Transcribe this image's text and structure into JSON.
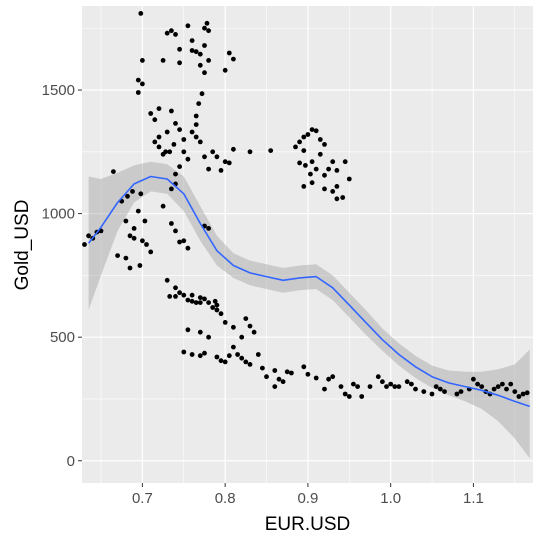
{
  "chart_data": {
    "type": "scatter",
    "xlabel": "EUR.USD",
    "ylabel": "Gold_USD",
    "xlim": [
      0.627,
      1.172
    ],
    "ylim": [
      -90,
      1840
    ],
    "x_ticks": [
      0.7,
      0.8,
      0.9,
      1.0,
      1.1
    ],
    "x_tick_labels": [
      "0.7",
      "0.8",
      "0.9",
      "1.0",
      "1.1"
    ],
    "y_ticks": [
      0,
      500,
      1000,
      1500
    ],
    "y_tick_labels": [
      "0",
      "500",
      "1000",
      "1500"
    ],
    "grid": true,
    "legend": "none",
    "colors": {
      "panel": "#ebebeb",
      "grid": "#ffffff",
      "points": "#000000",
      "smooth_line": "#3366ff",
      "ribbon": "#999999"
    },
    "points": [
      [
        0.698,
        1810
      ],
      [
        0.7,
        1620
      ],
      [
        0.695,
        1540
      ],
      [
        0.7,
        1525
      ],
      [
        0.695,
        1490
      ],
      [
        0.72,
        1425
      ],
      [
        0.725,
        1620
      ],
      [
        0.73,
        1730
      ],
      [
        0.735,
        1740
      ],
      [
        0.74,
        1725
      ],
      [
        0.745,
        1665
      ],
      [
        0.745,
        1610
      ],
      [
        0.755,
        1760
      ],
      [
        0.76,
        1700
      ],
      [
        0.76,
        1660
      ],
      [
        0.765,
        1655
      ],
      [
        0.77,
        1645
      ],
      [
        0.77,
        1600
      ],
      [
        0.775,
        1750
      ],
      [
        0.778,
        1770
      ],
      [
        0.78,
        1740
      ],
      [
        0.775,
        1680
      ],
      [
        0.78,
        1620
      ],
      [
        0.775,
        1570
      ],
      [
        0.772,
        1485
      ],
      [
        0.768,
        1445
      ],
      [
        0.765,
        1395
      ],
      [
        0.765,
        1360
      ],
      [
        0.8,
        1580
      ],
      [
        0.805,
        1650
      ],
      [
        0.81,
        1625
      ],
      [
        0.71,
        1405
      ],
      [
        0.715,
        1380
      ],
      [
        0.715,
        1290
      ],
      [
        0.72,
        1310
      ],
      [
        0.73,
        1330
      ],
      [
        0.725,
        1240
      ],
      [
        0.735,
        1415
      ],
      [
        0.74,
        1365
      ],
      [
        0.745,
        1340
      ],
      [
        0.75,
        1300
      ],
      [
        0.75,
        1250
      ],
      [
        0.755,
        1220
      ],
      [
        0.76,
        1330
      ],
      [
        0.765,
        1310
      ],
      [
        0.77,
        1290
      ],
      [
        0.775,
        1230
      ],
      [
        0.78,
        1180
      ],
      [
        0.785,
        1250
      ],
      [
        0.79,
        1230
      ],
      [
        0.795,
        1175
      ],
      [
        0.8,
        1210
      ],
      [
        0.805,
        1205
      ],
      [
        0.81,
        1260
      ],
      [
        0.72,
        1270
      ],
      [
        0.728,
        1250
      ],
      [
        0.733,
        1250
      ],
      [
        0.738,
        1280
      ],
      [
        0.74,
        1160
      ],
      [
        0.745,
        1190
      ],
      [
        0.735,
        1100
      ],
      [
        0.74,
        1120
      ],
      [
        0.83,
        1250
      ],
      [
        0.855,
        1255
      ],
      [
        0.89,
        1290
      ],
      [
        0.885,
        1270
      ],
      [
        0.895,
        1310
      ],
      [
        0.895,
        1255
      ],
      [
        0.9,
        1320
      ],
      [
        0.905,
        1340
      ],
      [
        0.91,
        1335
      ],
      [
        0.915,
        1300
      ],
      [
        0.915,
        1240
      ],
      [
        0.92,
        1280
      ],
      [
        0.89,
        1205
      ],
      [
        0.905,
        1210
      ],
      [
        0.91,
        1180
      ],
      [
        0.925,
        1180
      ],
      [
        0.93,
        1210
      ],
      [
        0.935,
        1175
      ],
      [
        0.945,
        1210
      ],
      [
        0.95,
        1140
      ],
      [
        0.895,
        1110
      ],
      [
        0.905,
        1125
      ],
      [
        0.92,
        1155
      ],
      [
        0.92,
        1100
      ],
      [
        0.93,
        1090
      ],
      [
        0.935,
        1060
      ],
      [
        0.942,
        1065
      ],
      [
        0.935,
        1110
      ],
      [
        0.897,
        1195
      ],
      [
        0.903,
        1160
      ],
      [
        0.665,
        1170
      ],
      [
        0.675,
        1050
      ],
      [
        0.682,
        1070
      ],
      [
        0.688,
        1090
      ],
      [
        0.695,
        1010
      ],
      [
        0.698,
        1080
      ],
      [
        0.703,
        970
      ],
      [
        0.69,
        940
      ],
      [
        0.7,
        890
      ],
      [
        0.705,
        875
      ],
      [
        0.71,
        845
      ],
      [
        0.68,
        970
      ],
      [
        0.685,
        910
      ],
      [
        0.69,
        900
      ],
      [
        0.685,
        780
      ],
      [
        0.68,
        820
      ],
      [
        0.67,
        830
      ],
      [
        0.697,
        790
      ],
      [
        0.725,
        1030
      ],
      [
        0.735,
        960
      ],
      [
        0.74,
        930
      ],
      [
        0.745,
        885
      ],
      [
        0.75,
        890
      ],
      [
        0.755,
        860
      ],
      [
        0.775,
        950
      ],
      [
        0.78,
        940
      ],
      [
        0.73,
        730
      ],
      [
        0.74,
        700
      ],
      [
        0.745,
        680
      ],
      [
        0.75,
        670
      ],
      [
        0.755,
        650
      ],
      [
        0.76,
        670
      ],
      [
        0.765,
        640
      ],
      [
        0.77,
        660
      ],
      [
        0.775,
        655
      ],
      [
        0.78,
        640
      ],
      [
        0.785,
        620
      ],
      [
        0.79,
        610
      ],
      [
        0.795,
        595
      ],
      [
        0.8,
        560
      ],
      [
        0.81,
        540
      ],
      [
        0.82,
        500
      ],
      [
        0.825,
        575
      ],
      [
        0.83,
        545
      ],
      [
        0.835,
        520
      ],
      [
        0.74,
        665
      ],
      [
        0.733,
        665
      ],
      [
        0.76,
        645
      ],
      [
        0.77,
        640
      ],
      [
        0.788,
        645
      ],
      [
        0.63,
        875
      ],
      [
        0.635,
        910
      ],
      [
        0.64,
        900
      ],
      [
        0.645,
        925
      ],
      [
        0.65,
        930
      ],
      [
        0.75,
        440
      ],
      [
        0.76,
        430
      ],
      [
        0.77,
        425
      ],
      [
        0.775,
        435
      ],
      [
        0.78,
        500
      ],
      [
        0.79,
        420
      ],
      [
        0.795,
        405
      ],
      [
        0.8,
        400
      ],
      [
        0.805,
        425
      ],
      [
        0.81,
        460
      ],
      [
        0.815,
        430
      ],
      [
        0.82,
        415
      ],
      [
        0.825,
        400
      ],
      [
        0.83,
        390
      ],
      [
        0.84,
        430
      ],
      [
        0.845,
        375
      ],
      [
        0.86,
        365
      ],
      [
        0.865,
        330
      ],
      [
        0.87,
        320
      ],
      [
        0.875,
        360
      ],
      [
        0.88,
        355
      ],
      [
        0.895,
        380
      ],
      [
        0.9,
        350
      ],
      [
        0.91,
        335
      ],
      [
        0.92,
        290
      ],
      [
        0.925,
        330
      ],
      [
        0.93,
        340
      ],
      [
        0.94,
        300
      ],
      [
        0.945,
        270
      ],
      [
        0.95,
        260
      ],
      [
        0.955,
        310
      ],
      [
        0.96,
        300
      ],
      [
        0.965,
        260
      ],
      [
        0.975,
        300
      ],
      [
        0.985,
        340
      ],
      [
        0.99,
        320
      ],
      [
        0.995,
        300
      ],
      [
        1.0,
        310
      ],
      [
        1.005,
        300
      ],
      [
        1.01,
        300
      ],
      [
        1.02,
        320
      ],
      [
        1.025,
        310
      ],
      [
        1.03,
        290
      ],
      [
        1.04,
        280
      ],
      [
        1.05,
        270
      ],
      [
        1.055,
        300
      ],
      [
        1.06,
        290
      ],
      [
        1.065,
        280
      ],
      [
        1.08,
        270
      ],
      [
        1.085,
        280
      ],
      [
        1.095,
        290
      ],
      [
        1.1,
        330
      ],
      [
        1.105,
        310
      ],
      [
        1.11,
        300
      ],
      [
        1.115,
        280
      ],
      [
        1.12,
        270
      ],
      [
        1.125,
        290
      ],
      [
        1.13,
        300
      ],
      [
        1.135,
        310
      ],
      [
        1.14,
        290
      ],
      [
        1.145,
        310
      ],
      [
        1.15,
        280
      ],
      [
        1.155,
        260
      ],
      [
        1.16,
        270
      ],
      [
        1.165,
        275
      ],
      [
        0.86,
        300
      ],
      [
        0.85,
        340
      ],
      [
        0.77,
        520
      ],
      [
        0.755,
        530
      ],
      [
        0.79,
        630
      ]
    ],
    "smooth_line": {
      "x": [
        0.635,
        0.65,
        0.67,
        0.69,
        0.71,
        0.73,
        0.75,
        0.77,
        0.79,
        0.81,
        0.83,
        0.85,
        0.87,
        0.89,
        0.91,
        0.93,
        0.95,
        0.97,
        0.99,
        1.01,
        1.03,
        1.05,
        1.07,
        1.09,
        1.11,
        1.13,
        1.15,
        1.168
      ],
      "y": [
        880,
        945,
        1045,
        1120,
        1150,
        1140,
        1080,
        960,
        850,
        790,
        760,
        745,
        730,
        740,
        745,
        700,
        630,
        560,
        490,
        430,
        380,
        340,
        315,
        300,
        285,
        265,
        240,
        220
      ],
      "lower": [
        610,
        750,
        930,
        1045,
        1090,
        1080,
        1010,
        890,
        790,
        740,
        710,
        695,
        680,
        690,
        695,
        650,
        580,
        510,
        445,
        385,
        335,
        295,
        265,
        240,
        210,
        160,
        90,
        10
      ],
      "upper": [
        1150,
        1140,
        1165,
        1195,
        1210,
        1200,
        1150,
        1030,
        910,
        840,
        810,
        795,
        780,
        790,
        795,
        750,
        680,
        610,
        535,
        475,
        425,
        385,
        365,
        360,
        360,
        370,
        390,
        450
      ]
    }
  }
}
